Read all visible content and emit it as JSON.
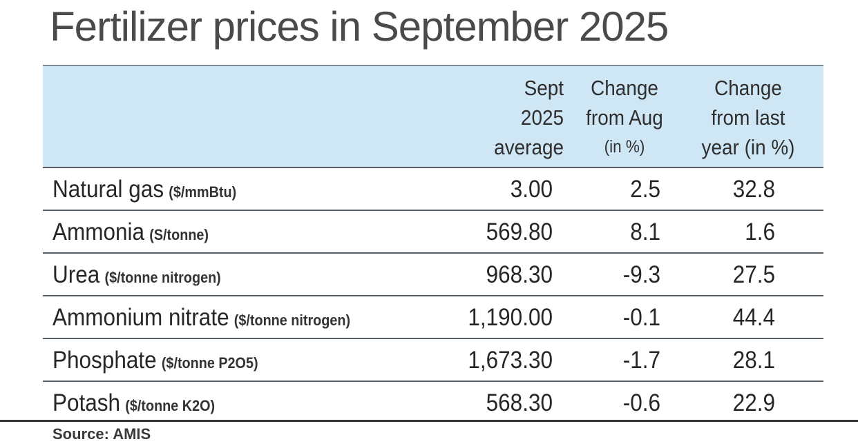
{
  "title": "Fertilizer prices in September 2025",
  "chart_data": {
    "type": "table",
    "title": "Fertilizer prices in September 2025",
    "columns": [
      {
        "lines": [
          "Sept",
          "2025",
          "average"
        ]
      },
      {
        "lines": [
          "Change",
          "from Aug",
          "(in %)"
        ]
      },
      {
        "lines": [
          "Change",
          "from last",
          "year (in %)"
        ]
      }
    ],
    "rows": [
      {
        "name": "Natural gas",
        "unit": "($/mmBtu)",
        "avg": "3.00",
        "chg_aug": "2.5",
        "chg_year": "32.8"
      },
      {
        "name": "Ammonia",
        "unit": "(S/tonne)",
        "avg": "569.80",
        "chg_aug": "8.1",
        "chg_year": "1.6"
      },
      {
        "name": "Urea",
        "unit": "($/tonne nitrogen)",
        "avg": "968.30",
        "chg_aug": "-9.3",
        "chg_year": "27.5"
      },
      {
        "name": "Ammonium nitrate",
        "unit": "($/tonne nitrogen)",
        "avg": "1,190.00",
        "chg_aug": "-0.1",
        "chg_year": "44.4"
      },
      {
        "name": "Phosphate",
        "unit": "($/tonne P2O5)",
        "avg": "1,673.30",
        "chg_aug": "-1.7",
        "chg_year": "28.1"
      },
      {
        "name": "Potash",
        "unit": "($/tonne K2O)",
        "avg": "568.30",
        "chg_aug": "-0.6",
        "chg_year": "22.9"
      }
    ]
  },
  "source": "Source: AMIS"
}
